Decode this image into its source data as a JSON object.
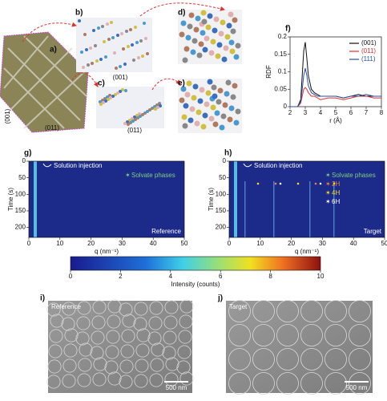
{
  "panels": {
    "a": {
      "label": "a)",
      "facets": [
        "(001)",
        "(011)"
      ]
    },
    "b": {
      "label": "b)",
      "facet": "(001)"
    },
    "c": {
      "label": "c)",
      "facet": "(011)"
    },
    "d": {
      "label": "d)"
    },
    "e": {
      "label": "e)"
    },
    "i": {
      "label": "i)",
      "caption": "Reference",
      "scale_bar": "500 nm"
    },
    "j": {
      "label": "j)",
      "caption": "Target",
      "scale_bar": "500 nm"
    }
  },
  "chart_data": [
    {
      "type": "line",
      "label": "f)",
      "ylabel": "RDF",
      "xlabel": "r (Å)",
      "x": [
        2,
        2.5,
        2.7,
        2.8,
        2.9,
        3.0,
        3.1,
        3.2,
        3.4,
        3.6,
        3.8,
        4,
        4.5,
        5,
        5.5,
        6,
        6.5,
        7,
        7.5,
        8
      ],
      "series": [
        {
          "name": "(001)",
          "color": "#111111",
          "values": [
            0,
            0,
            0.02,
            0.09,
            0.16,
            0.185,
            0.14,
            0.09,
            0.05,
            0.04,
            0.035,
            0.03,
            0.03,
            0.03,
            0.025,
            0.03,
            0.035,
            0.03,
            0.03,
            0.03
          ]
        },
        {
          "name": "(011)",
          "color": "#e03030",
          "values": [
            0,
            0,
            0.01,
            0.03,
            0.05,
            0.055,
            0.05,
            0.04,
            0.03,
            0.03,
            0.025,
            0.02,
            0.025,
            0.025,
            0.02,
            0.025,
            0.03,
            0.03,
            0.025,
            0.025
          ]
        },
        {
          "name": "(111)",
          "color": "#2a4fa0",
          "values": [
            0,
            0,
            0.015,
            0.05,
            0.09,
            0.11,
            0.09,
            0.06,
            0.04,
            0.035,
            0.03,
            0.03,
            0.03,
            0.03,
            0.025,
            0.03,
            0.03,
            0.035,
            0.03,
            0.03
          ]
        }
      ],
      "xlim": [
        2,
        8
      ],
      "xticks": [
        2,
        3,
        4,
        5,
        6,
        7,
        8
      ],
      "ylim": [
        0,
        0.2
      ],
      "yticks": [
        0,
        0.05,
        0.1,
        0.15,
        0.2
      ],
      "legend": "upper right"
    },
    {
      "type": "heatmap",
      "label": "g)",
      "ylabel": "Time (s)",
      "xlabel": "q (nm⁻¹)",
      "xlim": [
        0,
        50
      ],
      "xticks": [
        0,
        10,
        20,
        30,
        40,
        50
      ],
      "ylim": [
        0,
        230
      ],
      "yticks": [
        0,
        50,
        100,
        150,
        200
      ],
      "injection": "Solution injection",
      "corner_label": "Reference",
      "markers": [
        {
          "label": "Solvate phases",
          "color": "#7ed07e"
        }
      ]
    },
    {
      "type": "heatmap",
      "label": "h)",
      "ylabel": "Time (s)",
      "xlabel": "q (nm⁻¹)",
      "xlim": [
        0,
        50
      ],
      "xticks": [
        0,
        10,
        20,
        30,
        40,
        50
      ],
      "ylim": [
        0,
        230
      ],
      "yticks": [
        0,
        50,
        100,
        150,
        200
      ],
      "injection": "Solution injection",
      "corner_label": "Target",
      "markers": [
        {
          "label": "Solvate phases",
          "color": "#7ed07e"
        },
        {
          "label": "2H",
          "color": "#f08040"
        },
        {
          "label": "4H",
          "color": "#f0e020"
        },
        {
          "label": "6H",
          "color": "#ffffff"
        }
      ]
    },
    {
      "type": "colorbar",
      "xlabel": "Intensity (counts)",
      "xlim": [
        0,
        10
      ],
      "xticks": [
        0,
        2,
        4,
        6,
        8,
        10
      ]
    }
  ]
}
